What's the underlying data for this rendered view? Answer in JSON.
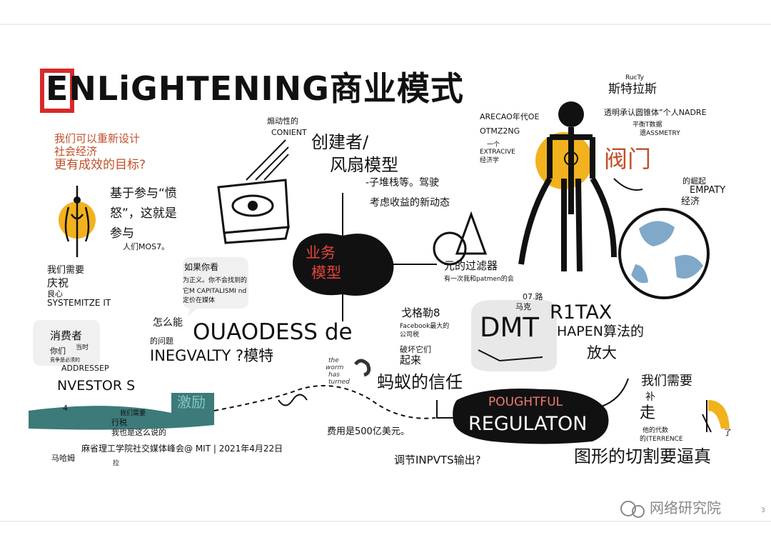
{
  "title": {
    "main": "ENLiGHTENING商业模式",
    "accent_letter": "E"
  },
  "left": {
    "question": [
      "我们可以重新设计",
      "社会经济",
      "更有成效的目标?"
    ],
    "participation": [
      "基于参与“愤",
      "怒”，这就是",
      "参与"
    ],
    "participation_sub": "人们MOS7。",
    "celebrate": [
      "我们需要",
      "庆祝"
    ],
    "conscience": "良心",
    "systemize": "SYSTEMITZE IT",
    "consumer": "消费者",
    "you": "你们",
    "when": "当时",
    "tiny_note": "竞争是必须的",
    "addressep": "ADDRESSEP",
    "investors": "NVESTOR S",
    "four": "4",
    "need_tax": [
      "我们需要",
      "行税"
    ],
    "we_said": "我也是这么说的",
    "mahamu": "马哈姆",
    "conference": "麻省理工学院社交媒体峰会@ MIT | 2021年4月22日",
    "la": "拉"
  },
  "center": {
    "inflame": [
      "煽动性的",
      "CONIENT"
    ],
    "creator": [
      "创建者/",
      "风扇模型"
    ],
    "substack": [
      "-子堆栈等。驾驶",
      "考虑收益的新动态"
    ],
    "business": [
      "业务",
      "模型"
    ],
    "filter": "元的过滤器",
    "filter_sub": "有一次我和patmen的会",
    "if_you": "如果你看",
    "if_you_sub": [
      "为正义。你不会找到的",
      "它M CAPITALISMI     nd",
      "定价在媒体"
    ],
    "how_can": "怎么能",
    "question_of": "的问题",
    "ouaodess": "OUAODESS de",
    "inequality": "INEGVALTY ?模特",
    "incentive": "激励",
    "cost": "费用是500亿美元。",
    "adjust": "调节INPVTS输出?",
    "goffman": "戈格勒8",
    "fb_tax": [
      "Facebook最大的",
      "公司税"
    ],
    "broken": "破坏它们",
    "up": "起来",
    "ant_trust": "蚂蚁的信任",
    "handwritten": [
      "the",
      "worm",
      "has",
      "turned"
    ]
  },
  "right": {
    "ructy": "RucTy",
    "stratus": "斯特拉斯",
    "transparent": "透明承认圆锥体”个人NADRE",
    "flat": "平衡T数据",
    "asymmetry": "遗ASSMETRY",
    "arecao": [
      "ARECAO年代OE",
      "OTMZ2NG"
    ],
    "extractive": [
      "一个",
      "EXTRACIVE",
      "经济学"
    ],
    "valve": "阀门",
    "rise": "的崛起",
    "empathy": [
      "EMPATY",
      "经济"
    ],
    "road": "07.路",
    "marker": "马克",
    "dmt": "DMT",
    "r1tax": "R1TAX",
    "hapen": "HAPEN算法的",
    "amplify": "放大",
    "thoughtful": "POUGHTFUL",
    "regulation": "REGULATON",
    "we_need": "我们需要",
    "supplement": "补",
    "walk": "走",
    "agent": [
      "他的代数",
      "的(TERRENCE"
    ],
    "le": "了",
    "graphic": "图形的切割要逼真"
  },
  "footer": {
    "watermark": "网络研究院",
    "page": "3"
  },
  "colors": {
    "accent_red": "#d62a2a",
    "orange": "#c0502a",
    "yellow": "#f2b21e",
    "teal": "#3d7a7a",
    "blue": "#5a8ab0"
  }
}
